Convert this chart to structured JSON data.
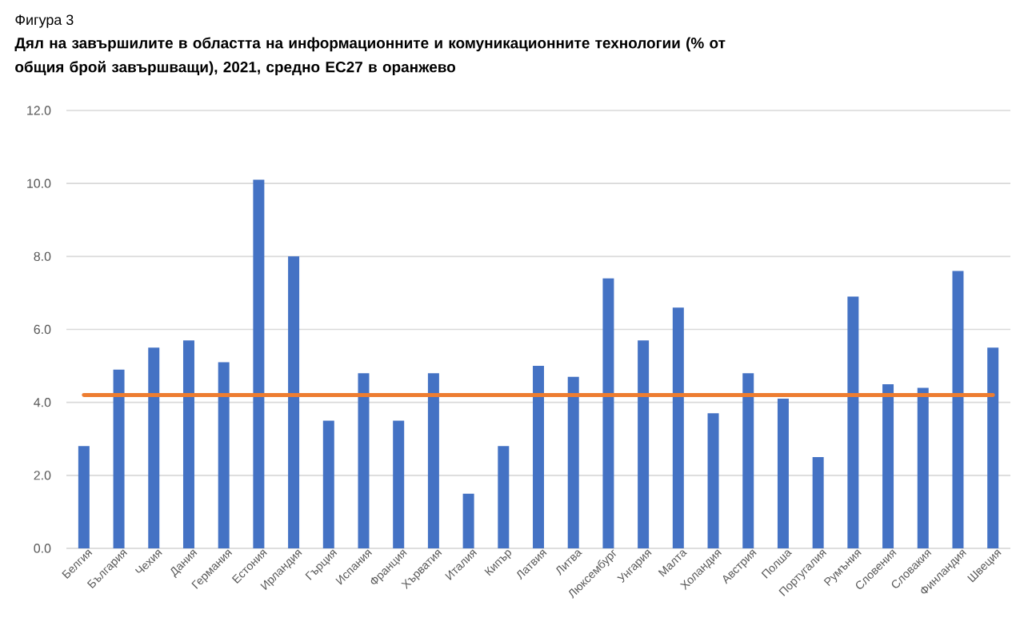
{
  "chart_data": {
    "type": "bar",
    "title": "Дял на завършилите в областта на информационните и комуникационните технологии (% от общия брой завършващи), 2021, средно ЕС27 в оранжево",
    "annotations": [
      "Фигура 3"
    ],
    "categories": [
      "Белгия",
      "България",
      "Чехия",
      "Дания",
      "Германия",
      "Естония",
      "Ирландия",
      "Гърция",
      "Испания",
      "Франция",
      "Хърватия",
      "Италия",
      "Кипър",
      "Латвия",
      "Литва",
      "Люксембург",
      "Унгария",
      "Малта",
      "Холандия",
      "Австрия",
      "Полша",
      "Португалия",
      "Румъния",
      "Словения",
      "Словакия",
      "Финландия",
      "Швеция"
    ],
    "values": [
      2.8,
      4.9,
      5.5,
      5.7,
      5.1,
      10.1,
      8.0,
      3.5,
      4.8,
      3.5,
      4.8,
      1.5,
      2.8,
      5.0,
      4.7,
      7.4,
      5.7,
      6.6,
      3.7,
      4.8,
      4.1,
      2.5,
      6.9,
      4.5,
      4.4,
      7.6,
      5.5
    ],
    "color": "#4472c4",
    "ylim": [
      0,
      12
    ],
    "yticks": [
      {
        "value": 0,
        "label": "0.0"
      },
      {
        "value": 2,
        "label": "2.0"
      },
      {
        "value": 4,
        "label": "4.0"
      },
      {
        "value": 6,
        "label": "6.0"
      },
      {
        "value": 8,
        "label": "8.0"
      },
      {
        "value": 10,
        "label": "10.0"
      },
      {
        "value": 12,
        "label": "12.0"
      }
    ],
    "grid": "y",
    "ref_lines": [
      {
        "axis": "y",
        "value": 4.2,
        "color": "#ed7d31"
      }
    ]
  }
}
